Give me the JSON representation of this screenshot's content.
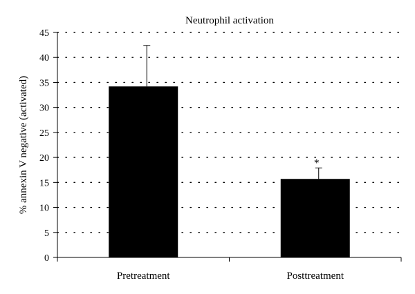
{
  "chart_data": {
    "type": "bar",
    "title": "Neutrophil activation",
    "xlabel": "",
    "ylabel": "% annexin V negative (activated)",
    "categories": [
      "Pretreatment",
      "Posttreatment"
    ],
    "values": [
      34.2,
      15.7
    ],
    "error_upper": [
      42.4,
      17.9
    ],
    "annotations": [
      "",
      "*"
    ],
    "ylim": [
      0,
      45
    ],
    "yticks": [
      0,
      5,
      10,
      15,
      20,
      25,
      30,
      35,
      40,
      45
    ],
    "grid": true,
    "bar_color": "#000000"
  }
}
